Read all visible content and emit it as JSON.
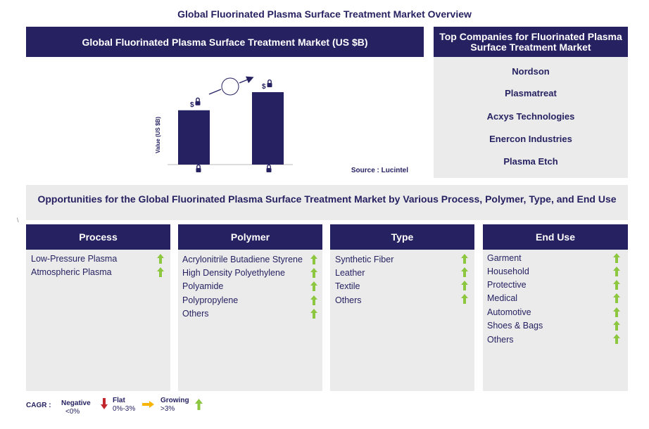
{
  "page_title": "Global Fluorinated Plasma Surface Treatment Market Overview",
  "chart": {
    "header": "Global Fluorinated Plasma Surface Treatment Market (US $B)",
    "ylabel": "Value (US $B)",
    "bar_label_symbol": "$",
    "source": "Source : Lucintel"
  },
  "chart_data": {
    "type": "bar",
    "categories": [
      "locked",
      "locked"
    ],
    "values": [
      0.6,
      0.8
    ],
    "title": "Global Fluorinated Plasma Surface Treatment Market (US $B)",
    "ylabel": "Value (US $B)",
    "ylim": [
      0,
      1
    ],
    "note": "values are hidden (locked) in the original"
  },
  "companies": {
    "header": "Top Companies for Fluorinated Plasma Surface Treatment Market",
    "items": [
      "Nordson",
      "Plasmatreat",
      "Acxys Technologies",
      "Enercon Industries",
      "Plasma Etch"
    ]
  },
  "opportunities": {
    "title": "Opportunities for the Global Fluorinated Plasma Surface Treatment Market by Various Process, Polymer, Type, and End Use"
  },
  "columns": [
    {
      "title": "Process",
      "items": [
        "Low-Pressure Plasma",
        "Atmospheric Plasma"
      ]
    },
    {
      "title": "Polymer",
      "items": [
        "Acrylonitrile Butadiene Styrene",
        "High Density Polyethylene",
        "Polyamide",
        "Polypropylene",
        "Others"
      ]
    },
    {
      "title": "Type",
      "items": [
        "Synthetic Fiber",
        "Leather",
        "Textile",
        "Others"
      ]
    },
    {
      "title": "End Use",
      "items": [
        "Garment",
        "Household",
        "Protective",
        "Medical",
        "Automotive",
        "Shoes & Bags",
        "Others"
      ]
    }
  ],
  "legend": {
    "cagr_label": "CAGR :",
    "negative_label": "Negative",
    "negative_range": "<0%",
    "flat_label": "Flat",
    "flat_range": "0%-3%",
    "growing_label": "Growing",
    "growing_range": ">3%"
  },
  "stray_mark": "\\",
  "colors": {
    "navy": "#262262",
    "panel": "#ebebeb",
    "growing": "#8dc63f",
    "negative": "#c1272d",
    "flat": "#f7b500"
  }
}
